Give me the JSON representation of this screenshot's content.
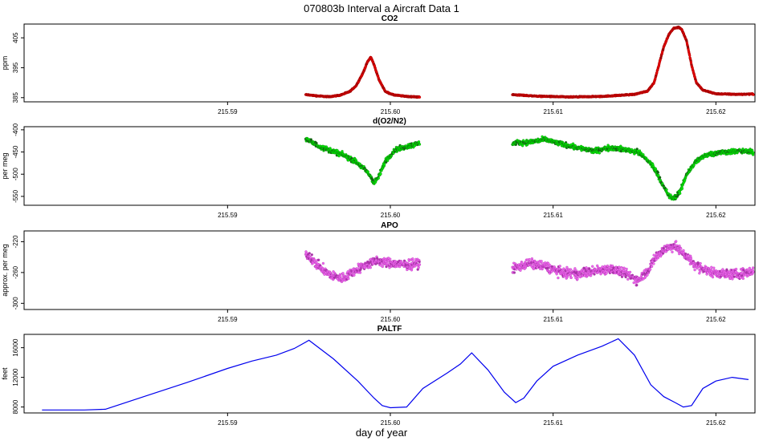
{
  "figure": {
    "title": "070803b   Interval a Aircraft Data 1",
    "xlabel": "day of year"
  },
  "chart_data": [
    {
      "type": "scatter",
      "title": "CO2",
      "ylabel": "ppm",
      "xlim": [
        215.5775,
        215.6224
      ],
      "ylim": [
        383.6,
        409.6
      ],
      "x_ticks": [
        "215.59",
        "215.60",
        "215.61",
        "215.62"
      ],
      "x_tick_values": [
        215.59,
        215.6,
        215.61,
        215.62
      ],
      "y_ticks": [
        "385",
        "395",
        "405"
      ],
      "y_tick_values": [
        385,
        395,
        405
      ],
      "series": [
        {
          "color": "#ee0000",
          "x": [
            215.5948,
            215.5955,
            215.5962,
            215.5969,
            215.5975,
            215.5979,
            215.5983,
            215.5986,
            215.5988,
            215.599,
            215.5993,
            215.5997,
            215.6002,
            215.601,
            215.6018,
            215.6075,
            215.609,
            215.611,
            215.613,
            215.615,
            215.6158,
            215.6162,
            215.6165,
            215.6168,
            215.6171,
            215.6174,
            215.6177,
            215.6179,
            215.6182,
            215.6185,
            215.6188,
            215.6192,
            215.62,
            215.6212,
            215.6223
          ],
          "y": [
            386,
            385.6,
            385.3,
            385.8,
            387,
            389,
            393,
            397,
            398.6,
            396,
            391,
            387,
            385.9,
            385.4,
            385.2,
            386,
            385.5,
            385.2,
            385.4,
            386.1,
            387.2,
            390,
            396,
            402,
            406,
            408.2,
            408.5,
            407.8,
            404,
            396,
            390,
            387.5,
            386.3,
            386.1,
            386.2
          ]
        }
      ]
    },
    {
      "type": "scatter",
      "title": "d(O2/N2)",
      "ylabel": "per meg",
      "xlim": [
        215.5775,
        215.6224
      ],
      "ylim": [
        -570,
        -393
      ],
      "x_ticks": [
        "215.59",
        "215.60",
        "215.61",
        "215.62"
      ],
      "x_tick_values": [
        215.59,
        215.6,
        215.61,
        215.62
      ],
      "y_ticks": [
        "-400",
        "-450",
        "-500",
        "-550"
      ],
      "y_tick_values": [
        -400,
        -450,
        -500,
        -550
      ],
      "series": [
        {
          "color": "#00ee00",
          "x": [
            215.5948,
            215.5955,
            215.5962,
            215.597,
            215.5978,
            215.5983,
            215.5987,
            215.599,
            215.5993,
            215.5997,
            215.6003,
            215.601,
            215.6018,
            215.6075,
            215.6085,
            215.6095,
            215.6105,
            215.6115,
            215.6125,
            215.6135,
            215.6145,
            215.6152,
            215.6157,
            215.6161,
            215.6165,
            215.6168,
            215.6171,
            215.6174,
            215.6178,
            215.6182,
            215.6188,
            215.6195,
            215.6205,
            215.6215,
            215.6223
          ],
          "y": [
            -420,
            -435,
            -445,
            -455,
            -470,
            -485,
            -500,
            -520,
            -505,
            -470,
            -445,
            -438,
            -430,
            -430,
            -428,
            -422,
            -432,
            -440,
            -448,
            -440,
            -445,
            -450,
            -465,
            -480,
            -505,
            -530,
            -548,
            -555,
            -540,
            -500,
            -470,
            -455,
            -450,
            -448,
            -450
          ]
        }
      ]
    },
    {
      "type": "scatter",
      "title": "APO",
      "ylabel": "approx. per meg",
      "xlim": [
        215.5775,
        215.6224
      ],
      "ylim": [
        -308,
        -206
      ],
      "x_ticks": [
        "215.59",
        "215.60",
        "215.61",
        "215.62"
      ],
      "x_tick_values": [
        215.59,
        215.6,
        215.61,
        215.62
      ],
      "y_ticks": [
        "-220",
        "-260",
        "-300"
      ],
      "y_tick_values": [
        -220,
        -260,
        -300
      ],
      "series": [
        {
          "color": "#ee66ee",
          "x": [
            215.5948,
            215.5955,
            215.5962,
            215.597,
            215.5978,
            215.5985,
            215.5992,
            215.6,
            215.6008,
            215.6018,
            215.6075,
            215.6085,
            215.6095,
            215.6105,
            215.6115,
            215.6125,
            215.6135,
            215.6145,
            215.6152,
            215.6158,
            215.6163,
            215.6168,
            215.6174,
            215.618,
            215.6187,
            215.6195,
            215.6205,
            215.6215,
            215.6223
          ],
          "y": [
            -235,
            -250,
            -262,
            -268,
            -258,
            -250,
            -245,
            -248,
            -250,
            -248,
            -255,
            -248,
            -252,
            -260,
            -262,
            -258,
            -255,
            -262,
            -270,
            -258,
            -240,
            -230,
            -225,
            -235,
            -250,
            -258,
            -262,
            -262,
            -258
          ]
        }
      ]
    },
    {
      "type": "line",
      "title": "PALTF",
      "ylabel": "feet",
      "xlim": [
        215.5775,
        215.6224
      ],
      "ylim": [
        7200,
        17800
      ],
      "x_ticks": [
        "215.59",
        "215.60",
        "215.61",
        "215.62"
      ],
      "x_tick_values": [
        215.59,
        215.6,
        215.61,
        215.62
      ],
      "y_ticks": [
        "8000",
        "12000",
        "16000"
      ],
      "y_tick_values": [
        8000,
        12000,
        16000
      ],
      "series": [
        {
          "color": "#0000ee",
          "x": [
            215.5786,
            215.5812,
            215.5825,
            215.585,
            215.5875,
            215.59,
            215.5915,
            215.593,
            215.5941,
            215.595,
            215.5965,
            215.598,
            215.599,
            215.5995,
            215.6,
            215.601,
            215.602,
            215.6035,
            215.6043,
            215.605,
            215.606,
            215.607,
            215.6077,
            215.6082,
            215.609,
            215.61,
            215.6115,
            215.613,
            215.614,
            215.615,
            215.616,
            215.6168,
            215.6175,
            215.618,
            215.6185,
            215.6192,
            215.62,
            215.621,
            215.622
          ],
          "y": [
            7600,
            7600,
            7700,
            9500,
            11300,
            13200,
            14200,
            15000,
            15900,
            17000,
            14500,
            11500,
            9200,
            8200,
            7900,
            8000,
            10500,
            12600,
            13800,
            15300,
            13000,
            10000,
            8600,
            9200,
            11500,
            13500,
            15000,
            16200,
            17200,
            15000,
            11000,
            9400,
            8600,
            8000,
            8200,
            10500,
            11500,
            12000,
            11700
          ]
        }
      ]
    }
  ]
}
